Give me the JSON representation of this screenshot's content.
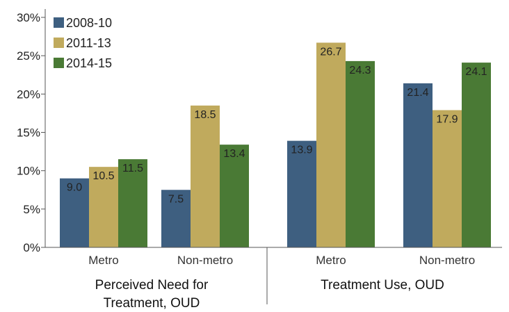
{
  "chart_data": {
    "type": "bar",
    "title": "",
    "xlabel": "",
    "ylabel": "",
    "ylim": [
      0,
      30
    ],
    "yticks": [
      0,
      5,
      10,
      15,
      20,
      25,
      30
    ],
    "y_tick_format": "%",
    "grid": false,
    "legend_position": "top-left",
    "categories": [
      "Metro",
      "Non-metro",
      "Metro",
      "Non-metro"
    ],
    "groups": [
      {
        "label": "Perceived Need for Treatment, OUD",
        "category_indices": [
          0,
          1
        ]
      },
      {
        "label": "Treatment Use, OUD",
        "category_indices": [
          2,
          3
        ]
      }
    ],
    "series": [
      {
        "name": "2008-10",
        "color": "#3e5f80",
        "values": [
          9.0,
          7.5,
          13.9,
          21.4
        ]
      },
      {
        "name": "2011-13",
        "color": "#c0aa5d",
        "values": [
          10.5,
          18.5,
          26.7,
          17.9
        ]
      },
      {
        "name": "2014-15",
        "color": "#4a7a35",
        "values": [
          11.5,
          13.4,
          24.3,
          24.1
        ]
      }
    ]
  }
}
